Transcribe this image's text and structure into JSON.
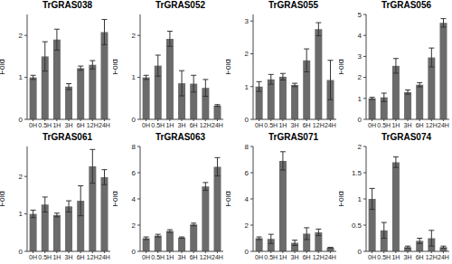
{
  "chart_data": [
    {
      "type": "bar",
      "title": "TrGRAS038",
      "ylabel": "Fold",
      "categories": [
        "0H",
        "0.5H",
        "1H",
        "3H",
        "6H",
        "12H",
        "24H"
      ],
      "values": [
        1.0,
        1.5,
        1.9,
        0.78,
        1.22,
        1.3,
        2.08
      ],
      "errors": [
        0.05,
        0.35,
        0.25,
        0.07,
        0.05,
        0.1,
        0.3
      ],
      "color": "#6b6b6b",
      "ylim": [
        0,
        2.5
      ],
      "yticks": [
        0,
        1,
        2
      ],
      "grid": false
    },
    {
      "type": "bar",
      "title": "TrGRAS052",
      "ylabel": "Fold",
      "categories": [
        "0H",
        "0.5H",
        "1H",
        "3H",
        "6H",
        "12H",
        "24H"
      ],
      "values": [
        1.0,
        1.28,
        1.92,
        0.86,
        0.85,
        0.75,
        0.33
      ],
      "errors": [
        0.05,
        0.25,
        0.18,
        0.3,
        0.2,
        0.2,
        0.02
      ],
      "color": "#6b6b6b",
      "ylim": [
        0,
        2.5
      ],
      "yticks": [
        0,
        1,
        2
      ],
      "grid": false
    },
    {
      "type": "bar",
      "title": "TrGRAS055",
      "ylabel": "Fold",
      "categories": [
        "0H",
        "0.5H",
        "1H",
        "3H",
        "6H",
        "12H",
        "24H"
      ],
      "values": [
        1.0,
        1.22,
        1.3,
        1.05,
        1.8,
        2.75,
        1.2
      ],
      "errors": [
        0.15,
        0.15,
        0.1,
        0.05,
        0.35,
        0.2,
        0.6
      ],
      "color": "#6b6b6b",
      "ylim": [
        0,
        3.2
      ],
      "yticks": [
        0,
        1,
        2,
        3
      ],
      "grid": false
    },
    {
      "type": "bar",
      "title": "TrGRAS056",
      "ylabel": "Fold",
      "categories": [
        "0H",
        "0.5H",
        "1H",
        "3H",
        "6H",
        "12H",
        "24H"
      ],
      "values": [
        1.0,
        1.05,
        2.55,
        1.3,
        1.65,
        2.95,
        4.6
      ],
      "errors": [
        0.05,
        0.2,
        0.35,
        0.1,
        0.1,
        0.45,
        0.2
      ],
      "color": "#6b6b6b",
      "ylim": [
        0,
        5
      ],
      "yticks": [
        0,
        1,
        2,
        3,
        4,
        5
      ],
      "grid": false
    },
    {
      "type": "bar",
      "title": "TrGRAS061",
      "ylabel": "Fold",
      "categories": [
        "0H",
        "0.5H",
        "1H",
        "3H",
        "6H",
        "12H",
        "24H"
      ],
      "values": [
        1.0,
        1.25,
        0.97,
        1.2,
        1.35,
        2.27,
        1.98
      ],
      "errors": [
        0.1,
        0.2,
        0.05,
        0.15,
        0.4,
        0.45,
        0.2
      ],
      "color": "#6b6b6b",
      "ylim": [
        0,
        2.8
      ],
      "yticks": [
        0,
        1,
        2
      ],
      "grid": false
    },
    {
      "type": "bar",
      "title": "TrGRAS063",
      "ylabel": "Fold",
      "categories": [
        "0H",
        "0.5H",
        "1H",
        "3H",
        "6H",
        "12H",
        "24H"
      ],
      "values": [
        1.0,
        1.2,
        1.55,
        1.05,
        2.05,
        4.95,
        6.45
      ],
      "errors": [
        0.1,
        0.1,
        0.1,
        0.05,
        0.1,
        0.3,
        0.7
      ],
      "color": "#6b6b6b",
      "ylim": [
        0,
        8
      ],
      "yticks": [
        0,
        2,
        4,
        6,
        8
      ],
      "grid": false
    },
    {
      "type": "bar",
      "title": "TrGRAS071",
      "ylabel": "Fold",
      "categories": [
        "0H",
        "0.5H",
        "1H",
        "3H",
        "6H",
        "12H",
        "24H"
      ],
      "values": [
        1.0,
        0.95,
        6.9,
        0.65,
        1.35,
        1.45,
        0.28
      ],
      "errors": [
        0.1,
        0.35,
        0.7,
        0.2,
        0.45,
        0.25,
        0.02
      ],
      "color": "#6b6b6b",
      "ylim": [
        0,
        8
      ],
      "yticks": [
        0,
        2,
        4,
        6,
        8
      ],
      "grid": false
    },
    {
      "type": "bar",
      "title": "TrGRAS074",
      "ylabel": "Fold",
      "categories": [
        "0H",
        "0.5H",
        "1H",
        "3H",
        "6H",
        "12H",
        "24H"
      ],
      "values": [
        1.0,
        0.4,
        1.7,
        0.08,
        0.2,
        0.25,
        0.08
      ],
      "errors": [
        0.2,
        0.15,
        0.1,
        0.02,
        0.05,
        0.15,
        0.02
      ],
      "color": "#6b6b6b",
      "ylim": [
        0,
        2
      ],
      "yticks": [
        0,
        0.5,
        1,
        1.5,
        2
      ],
      "grid": false
    }
  ]
}
